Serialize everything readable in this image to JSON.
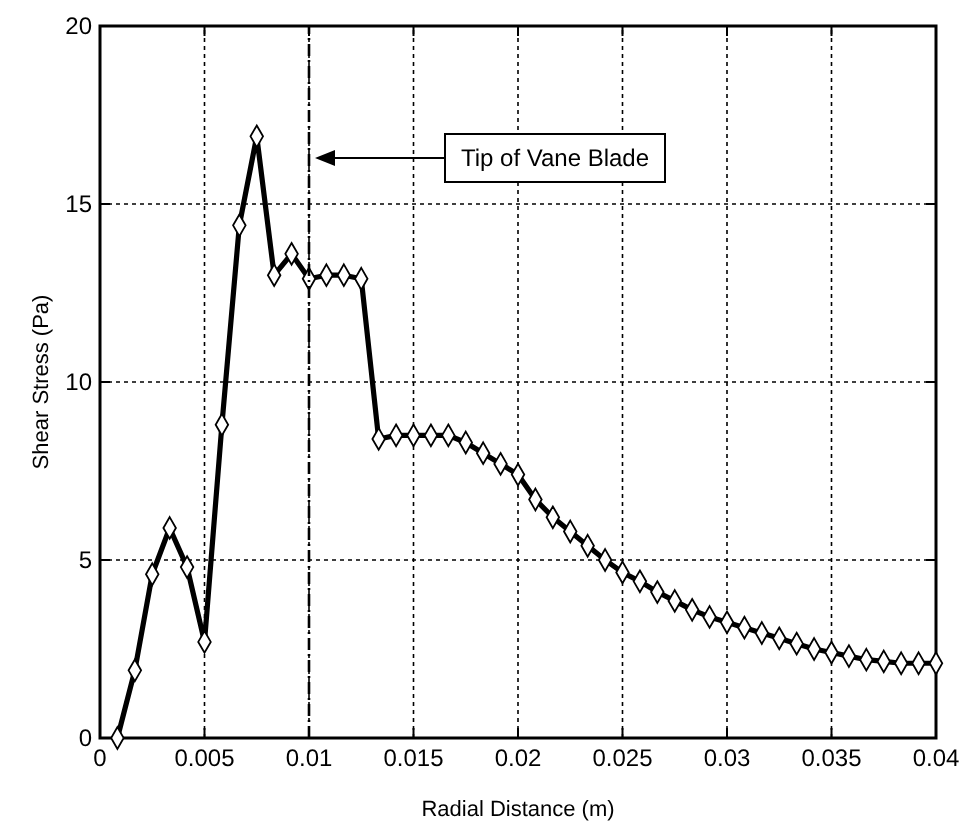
{
  "chart_data": {
    "type": "line",
    "xlabel": "Radial Distance (m)",
    "ylabel": "Shear Stress (Pa)",
    "x": [
      0.000833,
      0.001667,
      0.0025,
      0.003333,
      0.004167,
      0.005,
      0.005833,
      0.006667,
      0.0075,
      0.008333,
      0.009167,
      0.01,
      0.010833,
      0.011667,
      0.0125,
      0.013333,
      0.014167,
      0.015,
      0.015833,
      0.016667,
      0.0175,
      0.018333,
      0.019167,
      0.02,
      0.020833,
      0.021667,
      0.0225,
      0.023333,
      0.024167,
      0.025,
      0.025833,
      0.026667,
      0.0275,
      0.028333,
      0.029167,
      0.03,
      0.030833,
      0.031667,
      0.0325,
      0.033333,
      0.034167,
      0.035,
      0.035833,
      0.036667,
      0.0375,
      0.038333,
      0.039167,
      0.04
    ],
    "series": [
      {
        "color": "#000000",
        "values": [
          0.0,
          1.9,
          4.6,
          5.9,
          4.8,
          2.7,
          8.8,
          14.4,
          16.9,
          13.0,
          13.6,
          12.9,
          13.0,
          13.0,
          12.9,
          8.4,
          8.5,
          8.5,
          8.5,
          8.5,
          8.3,
          8.0,
          7.7,
          7.4,
          6.7,
          6.2,
          5.8,
          5.4,
          5.0,
          4.65,
          4.4,
          4.1,
          3.85,
          3.6,
          3.4,
          3.25,
          3.1,
          2.95,
          2.8,
          2.65,
          2.5,
          2.4,
          2.3,
          2.2,
          2.15,
          2.1,
          2.1,
          2.1
        ]
      }
    ],
    "xlim": [
      0,
      0.04
    ],
    "xticks": [
      0,
      0.005,
      0.01,
      0.015,
      0.02,
      0.025,
      0.03,
      0.035,
      0.04
    ],
    "ylim": [
      0,
      20
    ],
    "yticks": [
      0,
      5,
      10,
      15,
      20
    ],
    "grid": true,
    "marker": "diamond",
    "line_style": "solid",
    "ref_lines": [
      {
        "axis": "x",
        "value": 0.01,
        "label": "Tip of Vane Blade",
        "line_style": "dashed",
        "color": "#000000"
      }
    ]
  }
}
